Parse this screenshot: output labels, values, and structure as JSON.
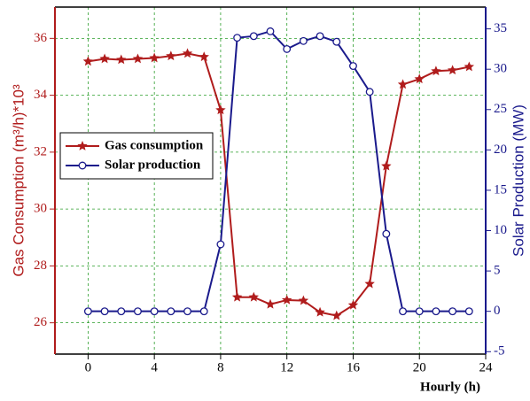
{
  "chart_data": {
    "type": "line",
    "x": [
      0,
      1,
      2,
      3,
      4,
      5,
      6,
      7,
      8,
      9,
      10,
      11,
      12,
      13,
      14,
      15,
      16,
      17,
      18,
      19,
      20,
      21,
      22,
      23
    ],
    "xlim": [
      -2,
      24
    ],
    "xticks": [
      0,
      4,
      8,
      12,
      16,
      20,
      24
    ],
    "ylim": [
      24.9,
      37.1
    ],
    "yticks": [
      26,
      28,
      30,
      32,
      34,
      36
    ],
    "y2lim": [
      -5.3,
      37.7
    ],
    "y2ticks": [
      -5,
      0,
      5,
      10,
      15,
      20,
      25,
      30,
      35
    ],
    "x_label": "Hourly (h)",
    "y_label": "Gas Consumption (m³/h)*10³",
    "y2_label": "Solar Production (MW)",
    "grid": true,
    "series": [
      {
        "name": "Gas consumption",
        "color": "#b01c1c",
        "marker": "star",
        "values": [
          35.19,
          35.28,
          35.25,
          35.28,
          35.31,
          35.38,
          35.47,
          35.35,
          33.48,
          26.9,
          26.9,
          26.65,
          26.8,
          26.78,
          26.37,
          26.25,
          26.62,
          27.37,
          31.51,
          34.38,
          34.57,
          34.85,
          34.88,
          35.0
        ]
      },
      {
        "name": "Solar production",
        "color": "#1a1a8c",
        "marker": "circle",
        "axis": "y2",
        "values": [
          0,
          0,
          0,
          0,
          0,
          0,
          0,
          0,
          8.3,
          33.9,
          34.1,
          34.7,
          32.5,
          33.5,
          34.1,
          33.4,
          30.4,
          27.2,
          9.6,
          0,
          0,
          0,
          0,
          0
        ]
      }
    ]
  }
}
